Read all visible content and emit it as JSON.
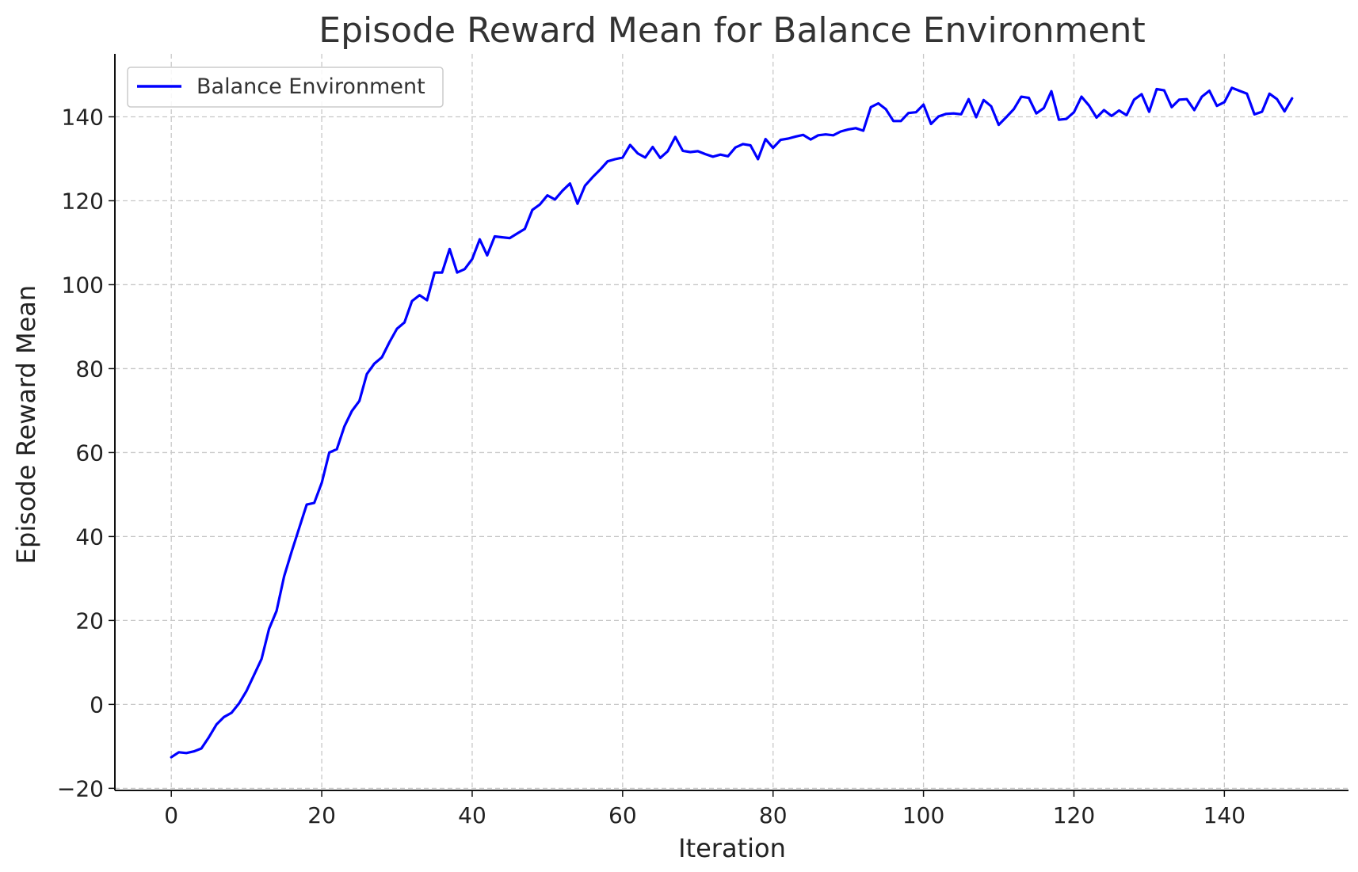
{
  "chart_data": {
    "type": "line",
    "title": "Episode Reward Mean for Balance Environment",
    "xlabel": "Iteration",
    "ylabel": "Episode Reward Mean",
    "xlim": [
      -7.5,
      156.5
    ],
    "ylim": [
      -20.5,
      155
    ],
    "xticks": [
      0,
      20,
      40,
      60,
      80,
      100,
      120,
      140
    ],
    "yticks": [
      -20,
      0,
      20,
      40,
      60,
      80,
      100,
      120,
      140
    ],
    "grid": true,
    "legend": "top-left",
    "series": [
      {
        "name": "Balance Environment",
        "color": "#0000ff",
        "x": [
          0,
          1,
          2,
          3,
          4,
          5,
          6,
          7,
          8,
          9,
          10,
          11,
          12,
          13,
          14,
          15,
          16,
          17,
          18,
          19,
          20,
          21,
          22,
          23,
          24,
          25,
          26,
          27,
          28,
          29,
          30,
          31,
          32,
          33,
          34,
          35,
          36,
          37,
          38,
          39,
          40,
          41,
          42,
          43,
          44,
          45,
          46,
          47,
          48,
          49,
          50,
          51,
          52,
          53,
          54,
          55,
          56,
          57,
          58,
          59,
          60,
          61,
          62,
          63,
          64,
          65,
          66,
          67,
          68,
          69,
          70,
          71,
          72,
          73,
          74,
          75,
          76,
          77,
          78,
          79,
          80,
          81,
          82,
          83,
          84,
          85,
          86,
          87,
          88,
          89,
          90,
          91,
          92,
          93,
          94,
          95,
          96,
          97,
          98,
          99,
          100,
          101,
          102,
          103,
          104,
          105,
          106,
          107,
          108,
          109,
          110,
          111,
          112,
          113,
          114,
          115,
          116,
          117,
          118,
          119,
          120,
          121,
          122,
          123,
          124,
          125,
          126,
          127,
          128,
          129,
          130,
          131,
          132,
          133,
          134,
          135,
          136,
          137,
          138,
          139,
          140,
          141,
          142,
          143,
          144,
          145,
          146,
          147,
          148,
          149
        ],
        "y": [
          -12.6,
          -11.4,
          -11.6,
          -11.2,
          -10.5,
          -7.8,
          -4.8,
          -3.0,
          -2.0,
          0.2,
          3.2,
          7.0,
          10.8,
          18.0,
          22.3,
          30.5,
          36.4,
          42.0,
          47.6,
          48.0,
          52.8,
          60.0,
          60.8,
          66.2,
          69.9,
          72.3,
          78.7,
          81.2,
          82.7,
          86.3,
          89.5,
          91.0,
          96.1,
          97.5,
          96.3,
          102.9,
          102.9,
          108.5,
          102.9,
          103.7,
          106.1,
          110.8,
          107.0,
          111.5,
          111.3,
          111.1,
          112.2,
          113.3,
          117.8,
          119.1,
          121.3,
          120.3,
          122.4,
          124.1,
          119.3,
          123.6,
          125.6,
          127.4,
          129.4,
          129.9,
          130.3,
          133.3,
          131.3,
          130.3,
          132.8,
          130.2,
          131.8,
          135.2,
          131.9,
          131.6,
          131.8,
          131.1,
          130.5,
          131.0,
          130.6,
          132.7,
          133.5,
          133.2,
          129.9,
          134.7,
          132.6,
          134.5,
          134.8,
          135.3,
          135.7,
          134.6,
          135.6,
          135.8,
          135.6,
          136.5,
          137.0,
          137.3,
          136.7,
          142.3,
          143.2,
          141.8,
          139.0,
          139.0,
          140.9,
          141.1,
          142.9,
          138.3,
          140.1,
          140.7,
          140.8,
          140.6,
          144.2,
          139.9,
          144.0,
          142.5,
          138.1,
          139.9,
          141.8,
          144.8,
          144.5,
          140.8,
          142.1,
          146.1,
          139.3,
          139.5,
          141.1,
          144.8,
          142.7,
          139.8,
          141.6,
          140.2,
          141.5,
          140.4,
          144.1,
          145.4,
          141.2,
          146.6,
          146.3,
          142.3,
          144.1,
          144.2,
          141.6,
          144.8,
          146.2,
          142.6,
          143.5,
          146.9,
          146.2,
          145.5,
          140.6,
          141.2,
          145.5,
          144.2,
          141.3,
          144.4
        ]
      }
    ]
  }
}
